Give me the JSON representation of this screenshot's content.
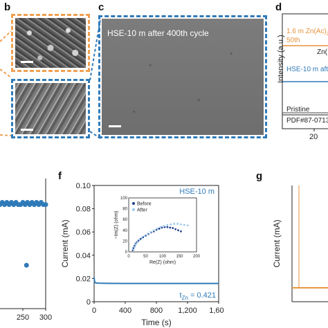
{
  "panels": {
    "b": "b",
    "c": "c",
    "d": "d",
    "f": "f",
    "g": "g"
  },
  "sem_c": {
    "label": "HSE-10 m after 400th cycle"
  },
  "xrd_d": {
    "ylabel": "Intensity (a.u.)",
    "trace_orange": "1.6 m Zn(Ac)",
    "trace_orange_sub": "2",
    "trace_orange_suffix": "50th",
    "zn_label": "Zn(",
    "trace_blue": "HSE-10 m aft",
    "pristine": "Pristine",
    "pdf": "PDF#87-0713",
    "x_tick": "20",
    "colors": {
      "orange": "#e8923a",
      "blue": "#2f7ab8"
    }
  },
  "chart_data": [
    {
      "type": "scatter",
      "panel": "e",
      "x_ticks": [
        "250",
        "300"
      ],
      "x": [
        200,
        205,
        210,
        215,
        220,
        225,
        230,
        235,
        240,
        245,
        250,
        255,
        258,
        260,
        265,
        270,
        275,
        280,
        285,
        290,
        295,
        300
      ],
      "y": [
        0.98,
        0.99,
        0.98,
        0.99,
        0.98,
        0.99,
        0.98,
        0.99,
        0.98,
        0.98,
        0.99,
        0.98,
        0.7,
        0.99,
        0.98,
        0.99,
        0.98,
        0.99,
        0.98,
        0.99,
        0.98,
        0.98
      ],
      "color": "#2f7ab8"
    },
    {
      "type": "line",
      "panel": "f",
      "title": "HSE-10 m",
      "xlabel": "Time (s)",
      "ylabel": "Current (mA)",
      "xlim": [
        0,
        1600
      ],
      "ylim": [
        0,
        0.1
      ],
      "x_ticks": [
        "0",
        "400",
        "800",
        "1,200",
        "1,600"
      ],
      "y_ticks": [
        "0",
        "0.02",
        "0.04",
        "0.06",
        "0.08",
        "0.10"
      ],
      "annotation": "t",
      "annotation_sub": "Zn",
      "annotation_value": " = 0.421",
      "x": [
        0,
        5,
        10,
        20,
        40,
        80,
        200,
        400,
        800,
        1200,
        1600
      ],
      "y": [
        0.021,
        0.018,
        0.0165,
        0.0162,
        0.016,
        0.0159,
        0.0158,
        0.0157,
        0.0157,
        0.0157,
        0.0157
      ],
      "color": "#2f7ab8",
      "inset": {
        "type": "scatter",
        "xlabel": "Re(Z) (ohm)",
        "ylabel": "−Im(Z) (ohm)",
        "xlim": [
          0,
          200
        ],
        "ylim": [
          0,
          100
        ],
        "x_ticks": [
          "0",
          "50",
          "100",
          "150",
          "200"
        ],
        "y_ticks": [
          "0",
          "20",
          "40",
          "60",
          "80",
          "100"
        ],
        "legend": [
          "Before",
          "After"
        ],
        "series": [
          {
            "name": "Before",
            "color": "#1d3f8a",
            "x": [
              12,
              14,
              17,
              20,
              24,
              29,
              35,
              42,
              50,
              58,
              66,
              74,
              82,
              90,
              98,
              106,
              114,
              122,
              130,
              138,
              146,
              154
            ],
            "y": [
              3,
              7,
              11,
              15,
              18,
              21,
              24,
              27,
              30,
              33,
              36,
              38,
              41,
              43,
              45,
              46,
              46,
              45,
              44,
              42,
              40,
              38
            ]
          },
          {
            "name": "After",
            "color": "#9cc8ea",
            "x": [
              14,
              17,
              21,
              26,
              32,
              39,
              47,
              56,
              65,
              74,
              84,
              94,
              104,
              114,
              124,
              134,
              144,
              154,
              164,
              174
            ],
            "y": [
              4,
              9,
              14,
              18,
              22,
              26,
              30,
              34,
              37,
              40,
              43,
              46,
              48,
              50,
              51,
              52,
              52,
              51,
              50,
              49
            ]
          }
        ]
      }
    },
    {
      "type": "line",
      "panel": "g",
      "ylabel": "Current (mA)",
      "x": [
        0,
        1
      ],
      "y": [
        0.012,
        0.012
      ],
      "color": "#e8923a"
    }
  ]
}
